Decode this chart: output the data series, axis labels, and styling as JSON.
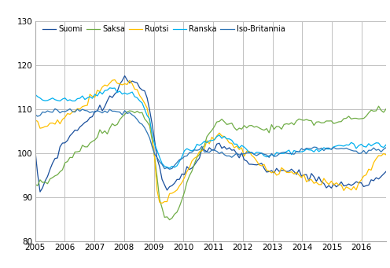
{
  "xlim": [
    2005.0,
    2016.83
  ],
  "ylim": [
    80,
    130
  ],
  "yticks": [
    80,
    90,
    100,
    110,
    120,
    130
  ],
  "xticks": [
    2005,
    2006,
    2007,
    2008,
    2009,
    2010,
    2011,
    2012,
    2013,
    2014,
    2015,
    2016
  ],
  "colors": {
    "Suomi": "#1a4f9c",
    "Saksa": "#70ad47",
    "Ruotsi": "#ffc000",
    "Ranska": "#00b0f0",
    "Iso-Britannia": "#2e75b6"
  },
  "linewidth": 0.9,
  "grid_color": "#c0c0c0",
  "background": "#ffffff",
  "legend_fontsize": 7.0,
  "tick_fontsize": 7.5
}
